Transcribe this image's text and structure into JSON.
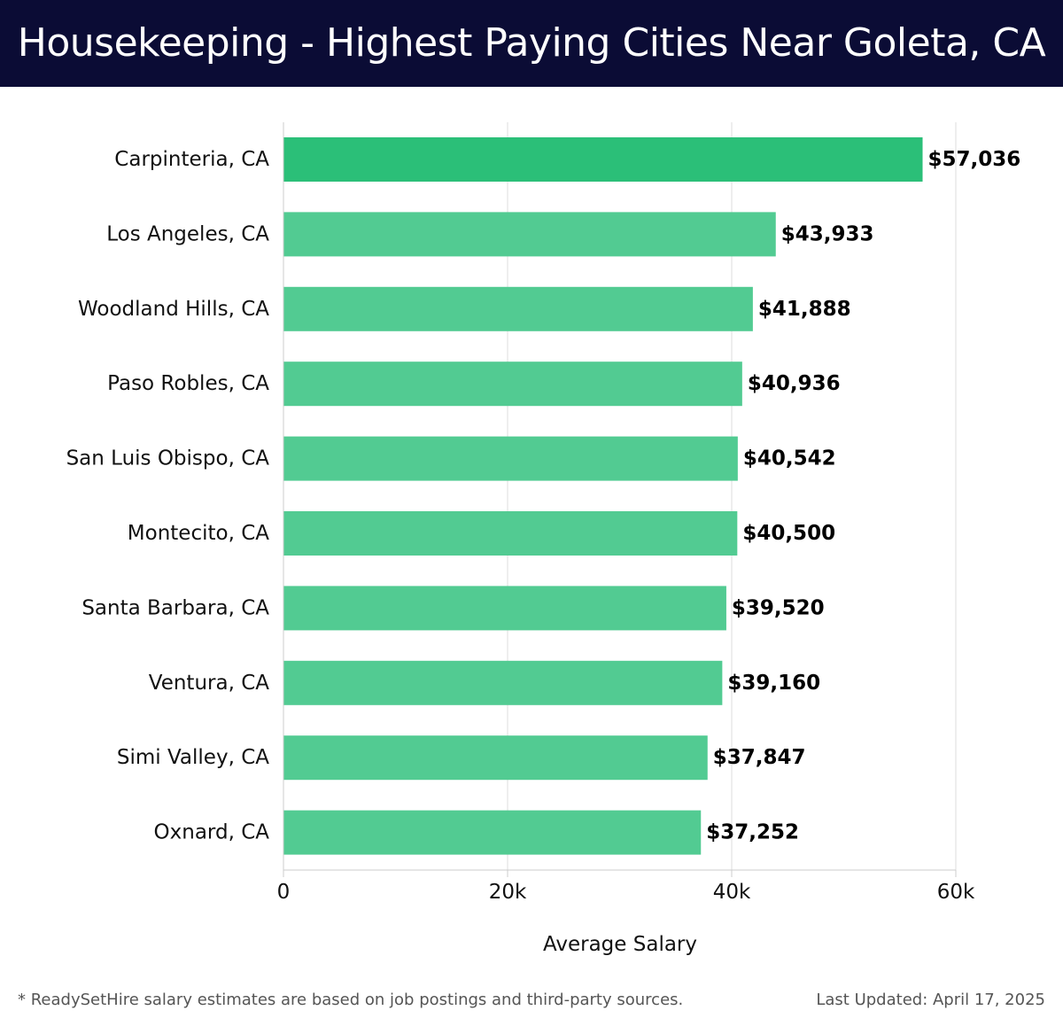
{
  "header": {
    "title": "Housekeeping - Highest Paying Cities Near Goleta, CA"
  },
  "chart_data": {
    "type": "bar",
    "orientation": "horizontal",
    "categories": [
      "Carpinteria, CA",
      "Los Angeles, CA",
      "Woodland Hills, CA",
      "Paso Robles, CA",
      "San Luis Obispo, CA",
      "Montecito, CA",
      "Santa Barbara, CA",
      "Ventura, CA",
      "Simi Valley, CA",
      "Oxnard, CA"
    ],
    "values": [
      57036,
      43933,
      41888,
      40936,
      40542,
      40500,
      39520,
      39160,
      37847,
      37252
    ],
    "value_labels": [
      "$57,036",
      "$43,933",
      "$41,888",
      "$40,936",
      "$40,542",
      "$40,500",
      "$39,520",
      "$39,160",
      "$37,847",
      "$37,252"
    ],
    "xlabel": "Average Salary",
    "xlim": [
      0,
      60000
    ],
    "xticks": [
      0,
      20000,
      40000,
      60000
    ],
    "xtick_labels": [
      "0",
      "20k",
      "40k",
      "60k"
    ],
    "grid": "vertical",
    "colors": {
      "top_bar": "#2bbf78",
      "bar": "#52cb92",
      "grid": "#dddddd",
      "axis": "#cccccc"
    }
  },
  "footer": {
    "note": "* ReadySetHire salary estimates are based on job postings and third-party sources.",
    "updated": "Last Updated: April 17, 2025"
  }
}
